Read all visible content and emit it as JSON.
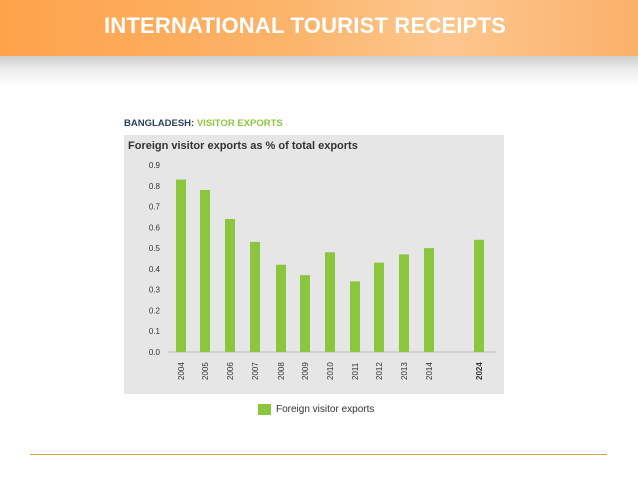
{
  "slide": {
    "title": "INTERNATIONAL TOURIST RECEIPTS"
  },
  "figure": {
    "country": "BANGLADESH:",
    "subject": "VISITOR EXPORTS"
  },
  "colors": {
    "bar": "#8cc63f",
    "banner": "#ffa24a",
    "panel": "#e6e6e6"
  },
  "chart_data": {
    "type": "bar",
    "title": "Foreign visitor exports as % of total exports",
    "xlabel": "",
    "ylabel": "",
    "categories": [
      "2004",
      "2005",
      "2006",
      "2007",
      "2008",
      "2009",
      "2010",
      "2011",
      "2012",
      "2013",
      "2014",
      "2024"
    ],
    "series": [
      {
        "name": "Foreign visitor exports",
        "values": [
          0.83,
          0.78,
          0.64,
          0.53,
          0.42,
          0.37,
          0.48,
          0.34,
          0.43,
          0.47,
          0.5,
          0.54
        ]
      }
    ],
    "yticks": [
      "0.0",
      "0.1",
      "0.2",
      "0.3",
      "0.4",
      "0.5",
      "0.6",
      "0.7",
      "0.8",
      "0.9"
    ],
    "ylim": [
      0,
      0.9
    ],
    "emphasized_category": "2024",
    "grid": false,
    "legend": "bottom"
  }
}
